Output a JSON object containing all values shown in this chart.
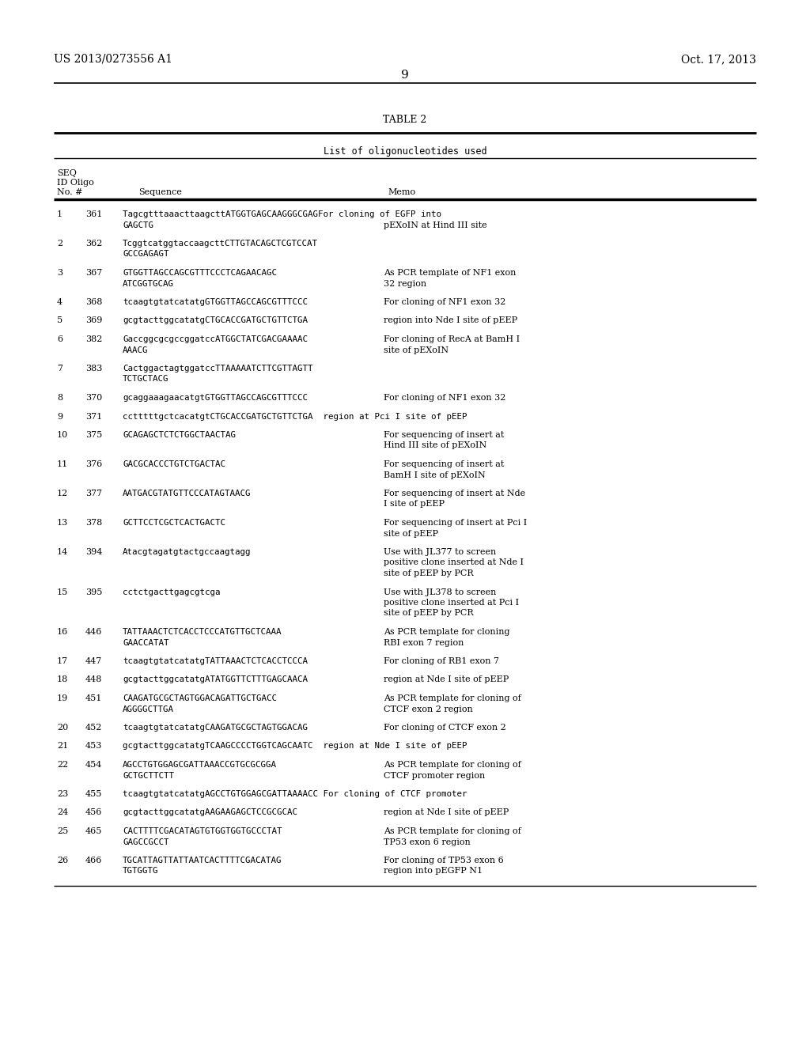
{
  "header_left": "US 2013/0273556 A1",
  "header_right": "Oct. 17, 2013",
  "page_number": "9",
  "table_title": "TABLE 2",
  "table_subtitle": "List of oligonucleotides used",
  "bg_color": "#ffffff",
  "text_color": "#000000",
  "rows": [
    {
      "no": "1",
      "oligo": "361",
      "seq": [
        "TagcgtttaaacttaagcttATGGTGAGCAAGGGCGAGFor cloning of EGFP into",
        "GAGCTG                                  pEXoIN at Hind III site"
      ]
    },
    {
      "no": "2",
      "oligo": "362",
      "seq": [
        "TcggtcatggtaccaagcttCTTGTACAGCTCGTCCAT",
        "GCCGAGAGT"
      ],
      "memo_lines": []
    },
    {
      "no": "3",
      "oligo": "367",
      "seq": [
        "GTGGTTAGCCAGCGTTTCCCTCAGAACAGC          As PCR template of NF1 exon",
        "ATCGGTGCAG                              32 region"
      ]
    },
    {
      "no": "4",
      "oligo": "368",
      "seq": [
        "tcaagtgtatcatatgGTGGTTAGCCAGCGTTTCCC   For cloning of NF1 exon 32"
      ]
    },
    {
      "no": "5",
      "oligo": "369",
      "seq": [
        "gcgtacttggcatatgCTGCACCGATGCTGTTCTGA   region into Nde I site of pEEP"
      ]
    },
    {
      "no": "6",
      "oligo": "382",
      "seq": [
        "GaccggcgcgccggatccATGGCTATCGACGAAAAC   For cloning of RecA at BamH I",
        "AAACG                                   site of pEXoIN"
      ]
    },
    {
      "no": "7",
      "oligo": "383",
      "seq": [
        "CactggactagtggatccTTAAAAATCTTCGTTAGTT",
        "TCTGCTACG"
      ]
    },
    {
      "no": "8",
      "oligo": "370",
      "seq": [
        "gcaggaaagaacatgtGTGGTTAGCCAGCGTTTCCC   For cloning of NF1 exon 32"
      ]
    },
    {
      "no": "9",
      "oligo": "371",
      "seq": [
        "cctttttgctcacatgtCTGCACCGATGCTGTTCTGA  region at Pci I site of pEEP"
      ]
    },
    {
      "no": "10",
      "oligo": "375",
      "seq": [
        "GCAGAGCTCTCTGGCTAACTAG                 For sequencing of insert at",
        "                                        Hind III site of pEXoIN"
      ]
    },
    {
      "no": "11",
      "oligo": "376",
      "seq": [
        "GACGCACCCTGTCTGACTAC                   For sequencing of insert at",
        "                                        BamH I site of pEXoIN"
      ]
    },
    {
      "no": "12",
      "oligo": "377",
      "seq": [
        "AATGACGTATGTTCCCATAGTAACG              For sequencing of insert at Nde",
        "                                        I site of pEEP"
      ]
    },
    {
      "no": "13",
      "oligo": "378",
      "seq": [
        "GCTTCCTCGCTCACTGACTC                   For sequencing of insert at Pci I",
        "                                        site of pEEP"
      ]
    },
    {
      "no": "14",
      "oligo": "394",
      "seq": [
        "Atacgtagatgtactgccaagtagg              Use with JL377 to screen",
        "                                        positive clone inserted at Nde I",
        "                                        site of pEEP by PCR"
      ]
    },
    {
      "no": "15",
      "oligo": "395",
      "seq": [
        "cctctgacttgagcgtcga                    Use with JL378 to screen",
        "                                        positive clone inserted at Pci I",
        "                                        site of pEEP by PCR"
      ]
    },
    {
      "no": "16",
      "oligo": "446",
      "seq": [
        "TATTAAACTCTCACCTCCCATGTTGCTCAAA        As PCR template for cloning",
        "GAACCATAT                               RBI exon 7 region"
      ]
    },
    {
      "no": "17",
      "oligo": "447",
      "seq": [
        "tcaagtgtatcatatgTATTAAACTCTCACCTCCCA   For cloning of RB1 exon 7"
      ]
    },
    {
      "no": "18",
      "oligo": "448",
      "seq": [
        "gcgtacttggcatatgATATGGTTCTTTGAGCAACA   region at Nde I site of pEEP"
      ]
    },
    {
      "no": "19",
      "oligo": "451",
      "seq": [
        "CAAGATGCGCTAGTGGACAGATTGCTGACC         As PCR template for cloning of",
        "AGGGGCTTGA                              CTCF exon 2 region"
      ]
    },
    {
      "no": "20",
      "oligo": "452",
      "seq": [
        "tcaagtgtatcatatgCAAGATGCGCTAGTGGACAG   For cloning of CTCF exon 2"
      ]
    },
    {
      "no": "21",
      "oligo": "453",
      "seq": [
        "gcgtacttggcatatgTCAAGCCCCTGGTCAGCAATС  region at Nde I site of pEEP"
      ]
    },
    {
      "no": "22",
      "oligo": "454",
      "seq": [
        "AGCCTGTGGAGCGATTAAACCGTGCGCGGA         As PCR template for cloning of",
        "GCTGCTTCTT                              CTCF promoter region"
      ]
    },
    {
      "no": "23",
      "oligo": "455",
      "seq": [
        "tcaagtgtatcatatgAGCCTGTGGAGCGATTAAAACC For cloning of CTCF promoter"
      ]
    },
    {
      "no": "24",
      "oligo": "456",
      "seq": [
        "gcgtacttggcatatgAAGAAGAGCTCCGCGCAC     region at Nde I site of pEEP"
      ]
    },
    {
      "no": "25",
      "oligo": "465",
      "seq": [
        "CACTTTTCGACATAGTGTGGTGGTGCCCTAT        As PCR template for cloning of",
        "GAGCCGCCT                               TP53 exon 6 region"
      ]
    },
    {
      "no": "26",
      "oligo": "466",
      "seq": [
        "TGCATTAGTTATTAATCACTTTTCGACATAG        For cloning of TP53 exon 6",
        "TGTGGTG                                 region into pEGFP N1"
      ]
    }
  ]
}
